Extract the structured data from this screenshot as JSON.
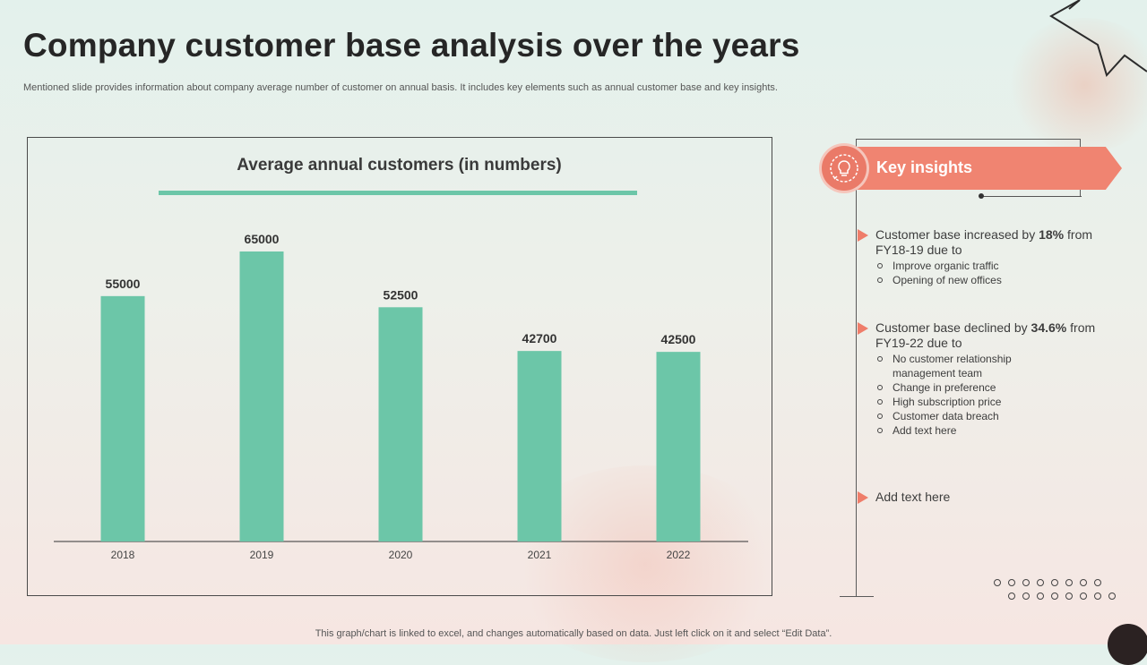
{
  "header": {
    "title": "Company customer base analysis over the years",
    "subtitle": "Mentioned slide provides information about company average number of customer on annual basis. It includes key elements such as annual customer base and key insights."
  },
  "chart_data": {
    "type": "bar",
    "title": "Average annual customers (in numbers)",
    "categories": [
      "2018",
      "2019",
      "2020",
      "2021",
      "2022"
    ],
    "values": [
      55000,
      65000,
      52500,
      42700,
      42500
    ],
    "xlabel": "",
    "ylabel": "",
    "ylim": [
      0,
      66000
    ],
    "grid": false,
    "bar_color": "#6cc6a8"
  },
  "insights": {
    "heading": "Key insights",
    "items": [
      {
        "pre": "Customer base increased by ",
        "highlight": "18%",
        "post": " from FY18-19 due to",
        "bullets": [
          "Improve  organic traffic",
          "Opening of new offices"
        ]
      },
      {
        "pre": "Customer base declined by ",
        "highlight": "34.6%",
        "post": " from FY19-22 due to",
        "bullets": [
          "No customer relationship management team",
          "Change  in preference",
          "High subscription price",
          "Customer data breach",
          "Add text here"
        ]
      },
      {
        "pre": "Add text here",
        "highlight": "",
        "post": "",
        "bullets": []
      }
    ]
  },
  "footer": {
    "note": "This graph/chart is linked to excel,  and changes automatically based on data. Just left click on it and select “Edit Data”."
  },
  "colors": {
    "accent": "#ef7d6a",
    "bar": "#6cc6a8",
    "title": "#262626"
  },
  "icons": {
    "insights": "lightbulb-gear-icon",
    "bullet_marker": "triangle-arrow-icon"
  }
}
